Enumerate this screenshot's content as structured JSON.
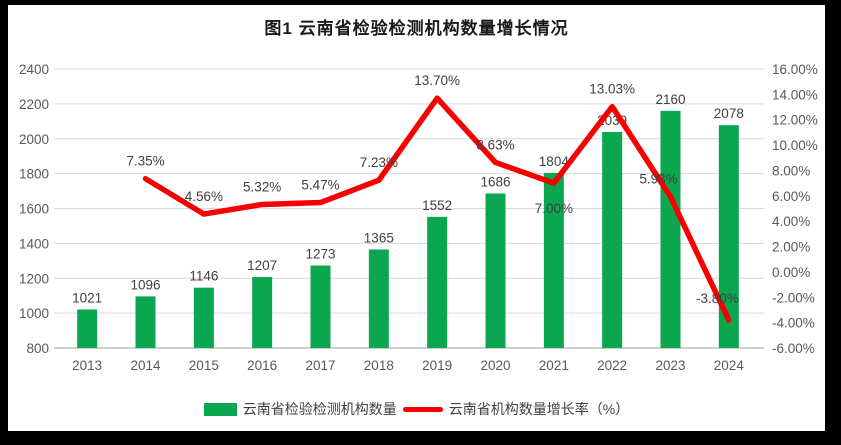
{
  "title": "图1  云南省检验检测机构数量增长情况",
  "colors": {
    "bar": "#0aa650",
    "line": "#f90000",
    "grid": "#d9d9d9",
    "axis_line": "#bfbfbf",
    "tick_label": "#595959",
    "data_label": "#404040",
    "panel": "#ffffff",
    "frame": "#000000"
  },
  "legend": {
    "items": [
      {
        "label": "云南省检验检测机构数量",
        "marker": "bar"
      },
      {
        "label": "云南省机构数量增长率（%）",
        "marker": "line"
      }
    ]
  },
  "chart_data": {
    "type": "bar",
    "subtype": "combo-bar-line",
    "title": "图1  云南省检验检测机构数量增长情况",
    "categories": [
      "2013",
      "2014",
      "2015",
      "2016",
      "2017",
      "2018",
      "2019",
      "2020",
      "2021",
      "2022",
      "2023",
      "2024"
    ],
    "series": [
      {
        "name": "云南省检验检测机构数量",
        "type": "bar",
        "axis": "left",
        "values": [
          1021,
          1096,
          1146,
          1207,
          1273,
          1365,
          1552,
          1686,
          1804,
          2039,
          2160,
          2078
        ]
      },
      {
        "name": "云南省机构数量增长率（%）",
        "type": "line",
        "axis": "right",
        "values": [
          null,
          7.35,
          4.56,
          5.32,
          5.47,
          7.23,
          13.7,
          8.63,
          7.0,
          13.03,
          5.93,
          -3.8
        ]
      }
    ],
    "left_axis": {
      "min": 800,
      "max": 2400,
      "step": 200,
      "tick_labels": [
        "800",
        "1000",
        "1200",
        "1400",
        "1600",
        "1800",
        "2000",
        "2200",
        "2400"
      ]
    },
    "right_axis": {
      "min": -6,
      "max": 16,
      "step": 2,
      "format": "percent2",
      "tick_labels": [
        "-6.00%",
        "-4.00%",
        "-2.00%",
        "0.00%",
        "2.00%",
        "4.00%",
        "6.00%",
        "8.00%",
        "10.00%",
        "12.00%",
        "14.00%",
        "16.00%"
      ]
    },
    "grid": true,
    "legend_position": "bottom",
    "xlabel": "",
    "ylabel_left": "",
    "ylabel_right": ""
  }
}
